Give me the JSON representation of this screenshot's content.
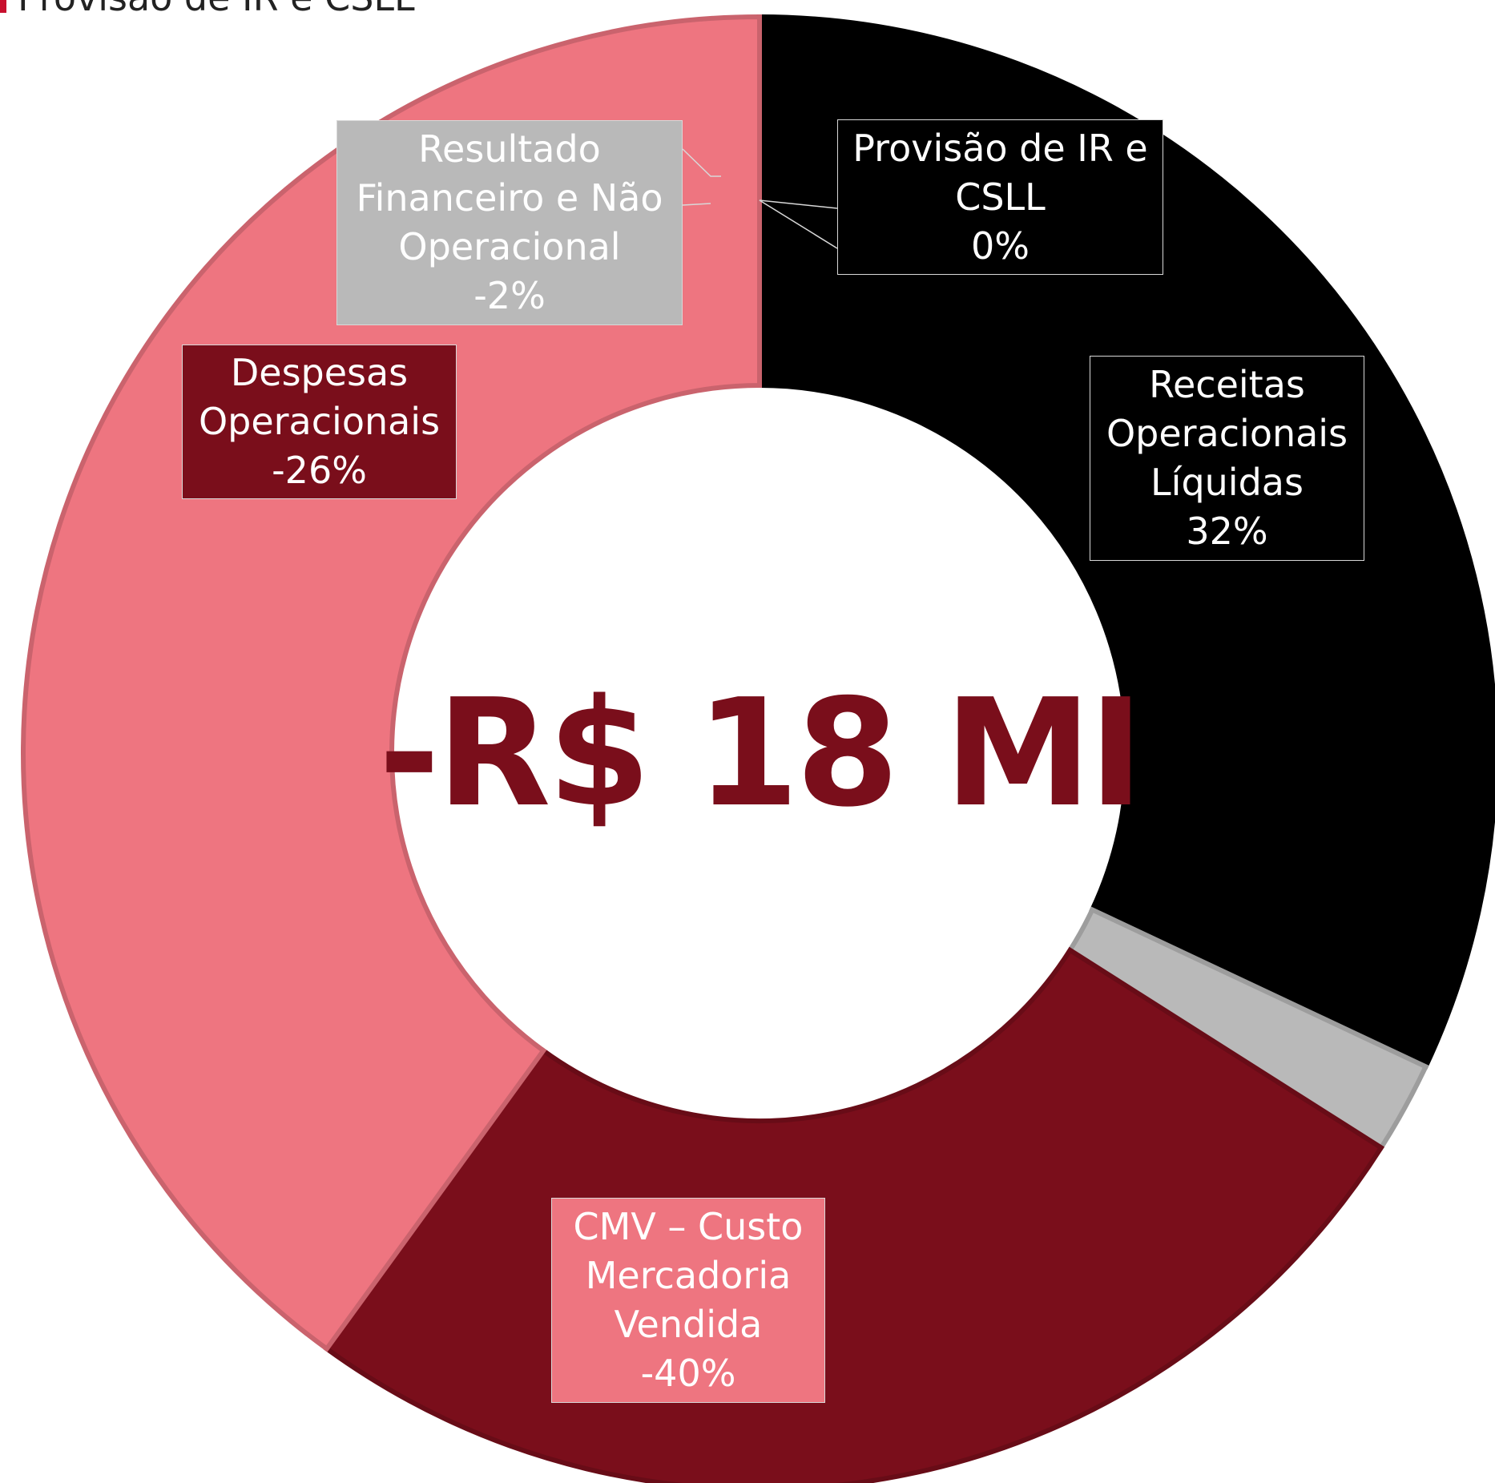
{
  "chart_data": {
    "type": "donut",
    "categories": [
      "Receitas Operacionais Líquidas",
      "Provisão de IR e CSLL",
      "Resultado Financeiro e Não Operacional",
      "Despesas Operacionais",
      "CMV – Custo Mercadoria Vendida"
    ],
    "values": [
      32,
      0,
      -2,
      -26,
      -40
    ],
    "value_labels": [
      "32%",
      "0%",
      "-2%",
      "-26%",
      "-40%"
    ],
    "colors": [
      "#000000",
      "#c8102e",
      "#b9b9b9",
      "#7a0e1b",
      "#ee7580"
    ],
    "center_label": "-R$ 18 MI",
    "legend": "top-left"
  }
}
